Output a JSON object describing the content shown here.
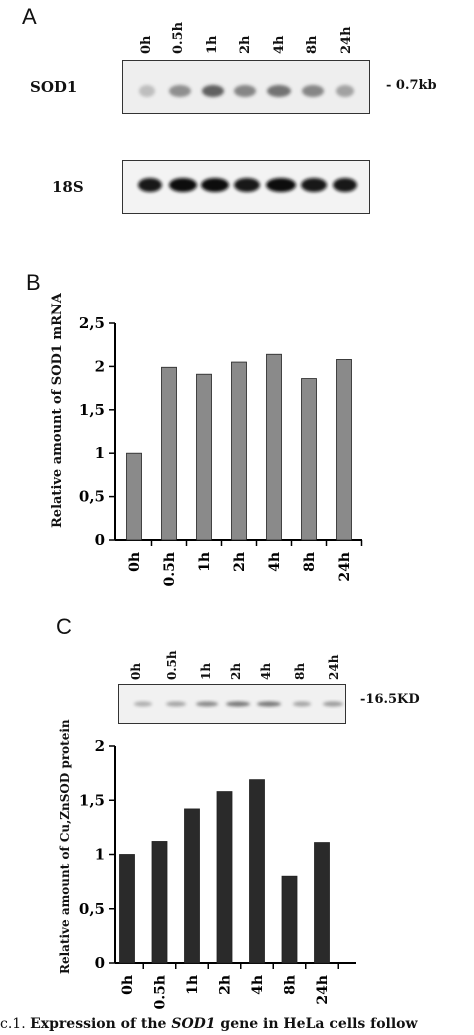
{
  "panels": {
    "a": {
      "letter": "A",
      "lanes": [
        "0h",
        "0.5h",
        "1h",
        "2h",
        "4h",
        "8h",
        "24h"
      ],
      "sod1_label": "SOD1",
      "sod1_size": "- 0.7kb",
      "rrna_label": "18S"
    },
    "b": {
      "letter": "B",
      "ylabel": "Relative amount of SOD1 mRNA"
    },
    "c": {
      "letter": "C",
      "lanes": [
        "0h",
        "0.5h",
        "1h",
        "2h",
        "4h",
        "8h",
        "24h"
      ],
      "protein_size": "-16.5KD",
      "ylabel": "Relative amount of Cu,ZnSOD protein"
    }
  },
  "chart_data": [
    {
      "type": "bar",
      "panel": "B",
      "categories": [
        "0h",
        "0.5h",
        "1h",
        "2h",
        "4h",
        "8h",
        "24h"
      ],
      "values": [
        1.0,
        1.99,
        1.91,
        2.05,
        2.14,
        1.86,
        2.08
      ],
      "ylabel": "Relative amount of SOD1 mRNA",
      "ylim": [
        0,
        2.5
      ],
      "yticks": [
        "0",
        "0,5",
        "1",
        "1,5",
        "2",
        "2,5"
      ],
      "bar_color": "#8a8a8a",
      "grid": false
    },
    {
      "type": "bar",
      "panel": "C",
      "categories": [
        "0h",
        "0.5h",
        "1h",
        "2h",
        "4h",
        "8h",
        "24h"
      ],
      "values": [
        1.0,
        1.12,
        1.42,
        1.58,
        1.69,
        0.8,
        1.11
      ],
      "ylabel": "Relative amount of Cu,ZnSOD protein",
      "ylim": [
        0,
        2
      ],
      "yticks": [
        "0",
        "0,5",
        "1",
        "1,5",
        "2"
      ],
      "bar_color": "#2a2a2a",
      "grid": false
    }
  ],
  "caption": {
    "prefix": "c.1. ",
    "text1": "Expression of the ",
    "gene": "SOD1",
    "text2": " gene in HeLa cells follow"
  }
}
